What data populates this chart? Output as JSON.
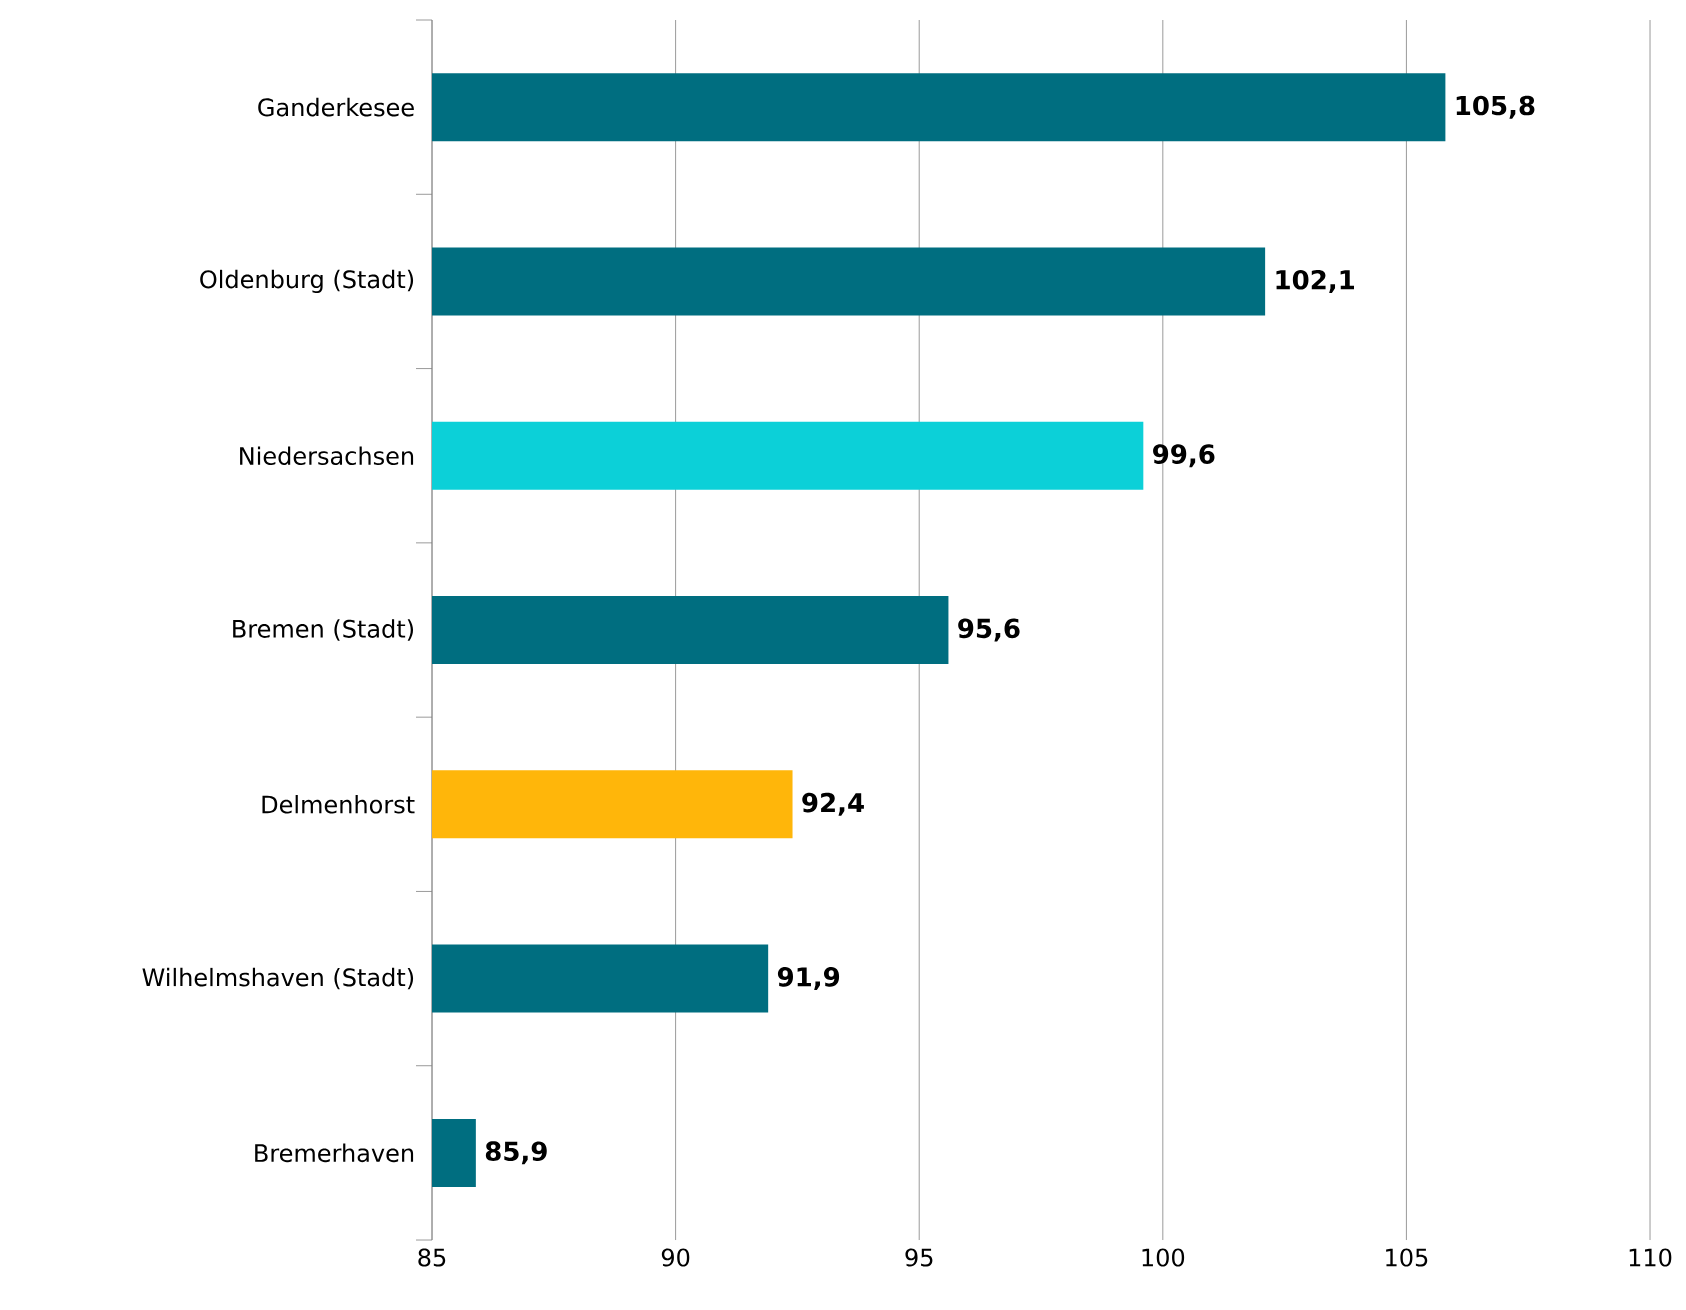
{
  "chart_data": {
    "type": "bar",
    "orientation": "horizontal",
    "categories": [
      "Ganderkesee",
      "Oldenburg (Stadt)",
      "Niedersachsen",
      "Bremen (Stadt)",
      "Delmenhorst",
      "Wilhelmshaven (Stadt)",
      "Bremerhaven"
    ],
    "values": [
      105.8,
      102.1,
      99.6,
      95.6,
      92.4,
      91.9,
      85.9
    ],
    "colors": [
      "#006e80",
      "#006e80",
      "#0cd0d8",
      "#006e80",
      "#ffb60a",
      "#006e80",
      "#006e80"
    ],
    "value_labels": [
      "105,8",
      "102,1",
      "99,6",
      "95,6",
      "92,4",
      "91,9",
      "85,9"
    ],
    "xlim": [
      85,
      110
    ],
    "xticks": [
      85,
      90,
      95,
      100,
      105,
      110
    ],
    "grid": "x"
  }
}
